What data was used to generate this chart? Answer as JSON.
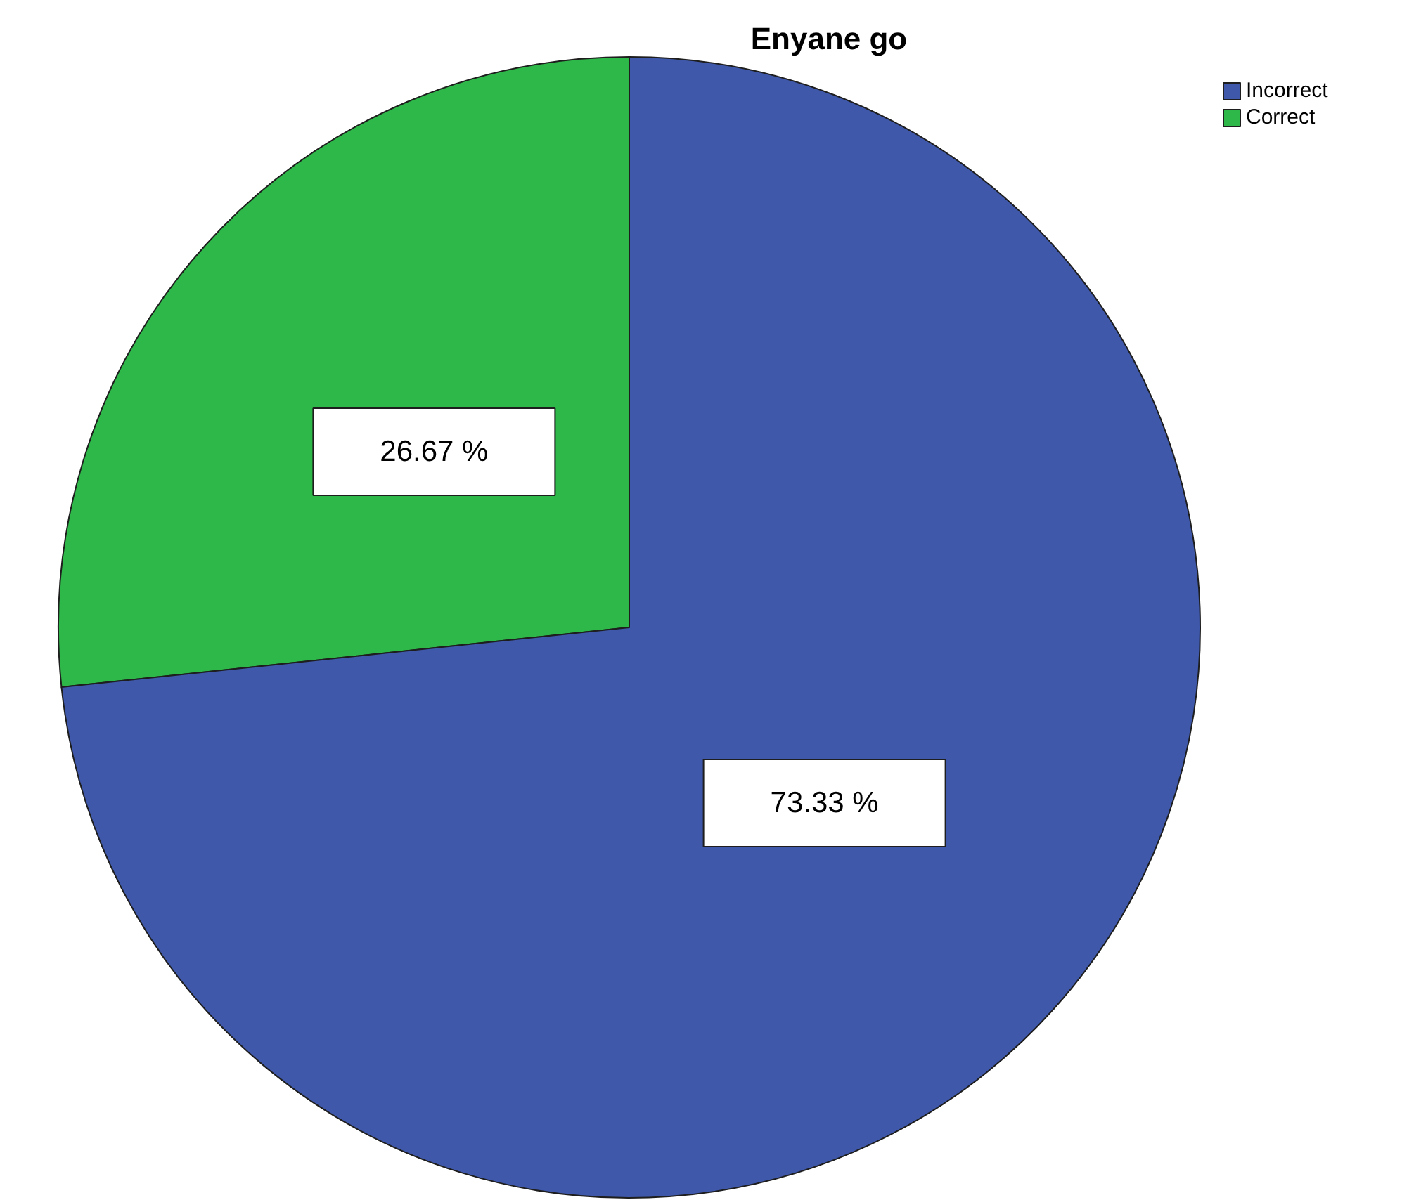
{
  "chart_data": {
    "type": "pie",
    "title": "Enyane go",
    "categories": [
      "Incorrect",
      "Correct"
    ],
    "values": [
      73.33,
      26.67
    ],
    "colors": [
      "#3f58a9",
      "#2fb84a"
    ],
    "value_labels": [
      "73.33 %",
      "26.67 %"
    ],
    "legend": "top right"
  }
}
